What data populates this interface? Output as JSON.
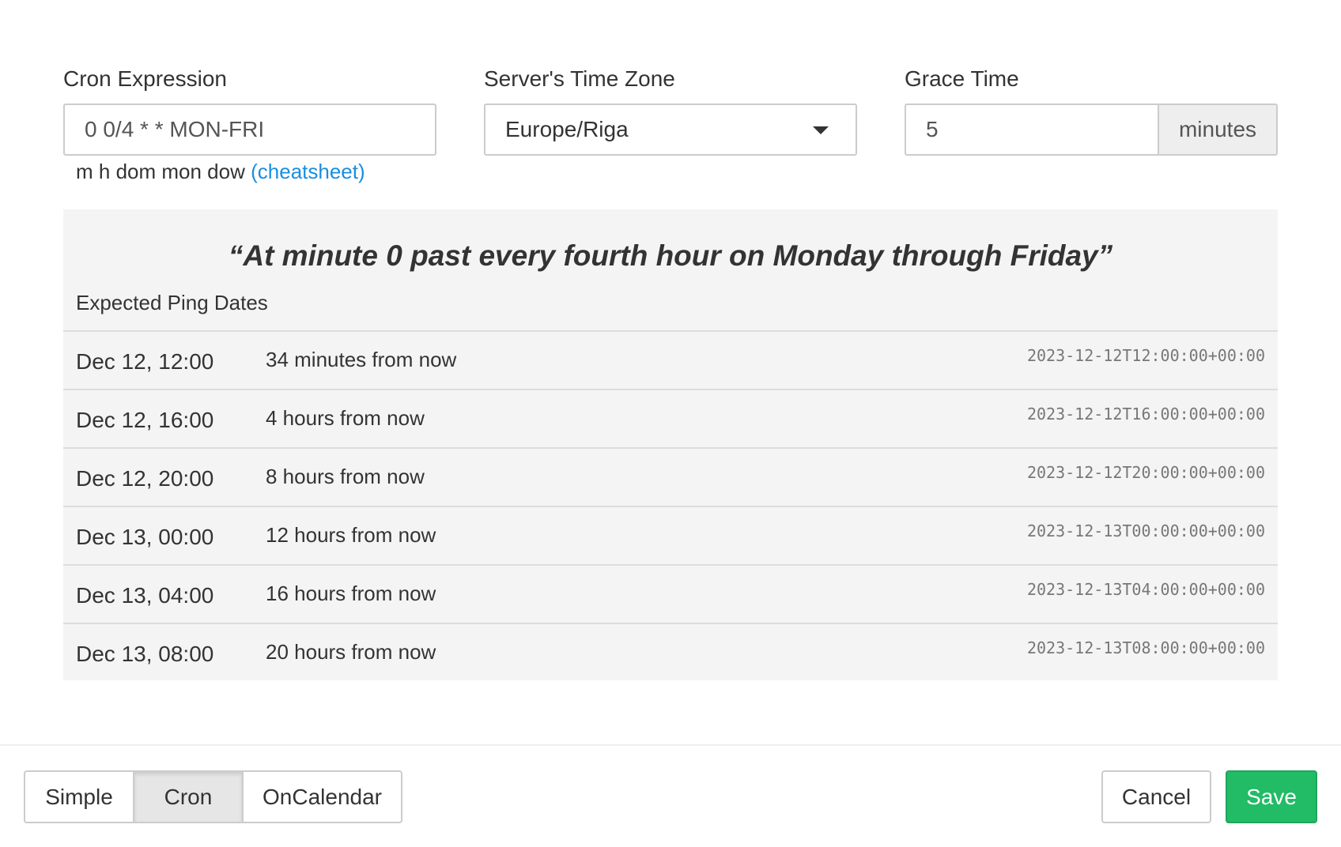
{
  "cron": {
    "label": "Cron Expression",
    "value": "0 0/4 * * MON-FRI",
    "hint": "m h dom mon dow",
    "cheatsheet": "(cheatsheet)"
  },
  "timezone": {
    "label": "Server's Time Zone",
    "value": "Europe/Riga"
  },
  "grace": {
    "label": "Grace Time",
    "value": "5",
    "unit": "minutes"
  },
  "description": "“At minute 0 past every fourth hour on Monday through Friday”",
  "expected_label": "Expected Ping Dates",
  "pings": [
    {
      "date": "Dec 12, 12:00",
      "relative": "34 minutes from now",
      "iso": "2023-12-12T12:00:00+00:00"
    },
    {
      "date": "Dec 12, 16:00",
      "relative": "4 hours from now",
      "iso": "2023-12-12T16:00:00+00:00"
    },
    {
      "date": "Dec 12, 20:00",
      "relative": "8 hours from now",
      "iso": "2023-12-12T20:00:00+00:00"
    },
    {
      "date": "Dec 13, 00:00",
      "relative": "12 hours from now",
      "iso": "2023-12-13T00:00:00+00:00"
    },
    {
      "date": "Dec 13, 04:00",
      "relative": "16 hours from now",
      "iso": "2023-12-13T04:00:00+00:00"
    },
    {
      "date": "Dec 13, 08:00",
      "relative": "20 hours from now",
      "iso": "2023-12-13T08:00:00+00:00"
    }
  ],
  "footer": {
    "modes": [
      "Simple",
      "Cron",
      "OnCalendar"
    ],
    "active_mode": "Cron",
    "cancel": "Cancel",
    "save": "Save",
    "save_color": "#22bb66"
  }
}
